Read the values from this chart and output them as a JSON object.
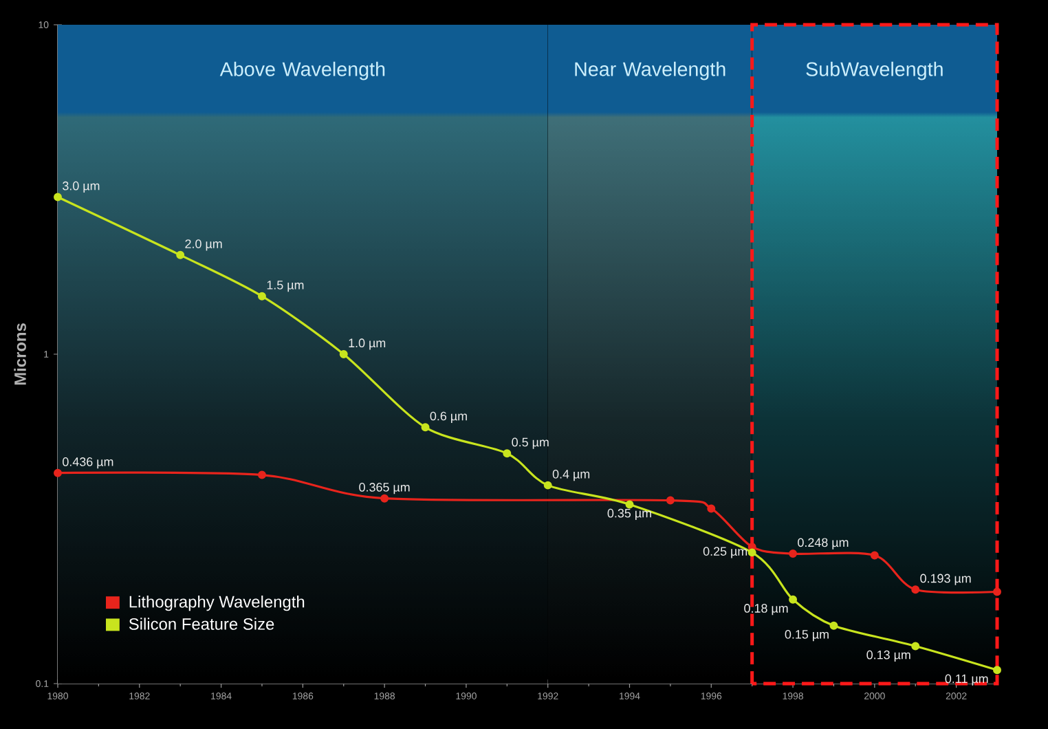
{
  "chart_data": {
    "type": "line",
    "ylabel": "Microns",
    "log": "y",
    "marker": "circle",
    "line_style": "solid",
    "legend": "bottom left",
    "xlim": [
      1980,
      2003
    ],
    "ylim": [
      0.1,
      10
    ],
    "xticks": [
      1980,
      1982,
      1984,
      1986,
      1988,
      1990,
      1992,
      1994,
      1996,
      1998,
      2000,
      2002
    ],
    "yticks": [
      0.1,
      1,
      10
    ],
    "bands": [
      {
        "axis": "x",
        "from": 1980,
        "to": 1992,
        "label": "Above Wavelength",
        "color": "#2f6a78"
      },
      {
        "axis": "x",
        "from": 1992,
        "to": 1997,
        "label": "Near Wavelength",
        "color": "#3f6f78"
      },
      {
        "axis": "x",
        "from": 1997,
        "to": 2003,
        "label": "SubWavelength",
        "color": "#23909f"
      }
    ],
    "series": [
      {
        "name": "Lithography Wavelength",
        "color": "#e8241c",
        "x": [
          1980,
          1985,
          1988,
          1995,
          1996,
          1997,
          1998,
          2000,
          2001,
          2003
        ],
        "values": [
          0.436,
          0.43,
          0.365,
          0.36,
          0.34,
          0.26,
          0.248,
          0.245,
          0.193,
          0.19
        ],
        "value_labels": [
          "0.436 µm",
          null,
          "0.365 µm",
          null,
          null,
          null,
          "0.248 µm",
          null,
          "0.193 µm",
          null
        ]
      },
      {
        "name": "Silicon Feature Size",
        "color": "#c8e41e",
        "x": [
          1980,
          1983,
          1985,
          1987,
          1989,
          1991,
          1992,
          1994,
          1997,
          1998,
          1999,
          2001,
          2003
        ],
        "values": [
          3.0,
          2.0,
          1.5,
          1.0,
          0.6,
          0.5,
          0.4,
          0.35,
          0.25,
          0.18,
          0.15,
          0.13,
          0.11
        ],
        "value_labels": [
          "3.0 µm",
          "2.0 µm",
          "1.5 µm",
          "1.0 µm",
          "0.6 µm",
          "0.5 µm",
          "0.4 µm",
          "0.35 µm",
          "0.25 µm",
          "0.18 µm",
          "0.15 µm",
          "0.13 µm",
          "0.11 µm"
        ]
      }
    ]
  }
}
